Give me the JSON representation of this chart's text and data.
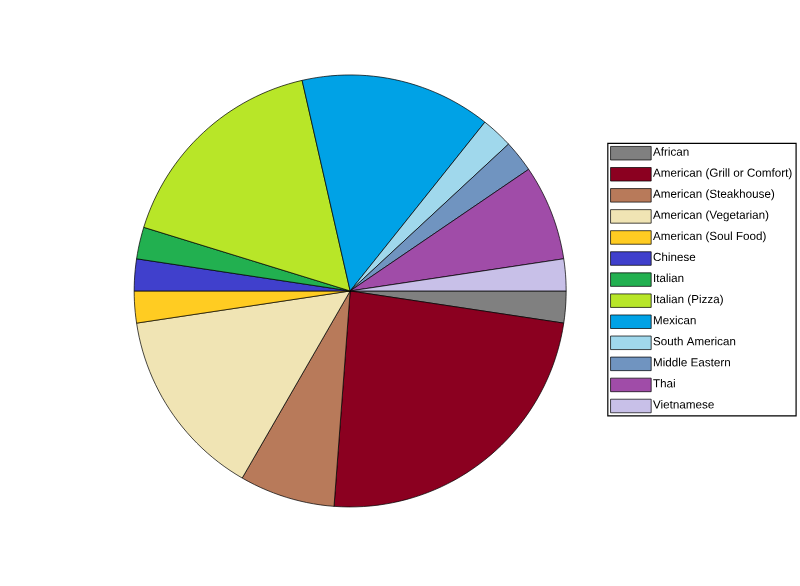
{
  "chart_data": {
    "type": "pie",
    "legend": "right",
    "categories": [
      "African",
      "American (Grill or Comfort)",
      "American (Steakhouse)",
      "American (Vegetarian)",
      "American (Soul Food)",
      "Chinese",
      "Italian",
      "Italian (Pizza)",
      "Mexican",
      "South American",
      "Middle Eastern",
      "Thai",
      "Vietnamese"
    ],
    "values": [
      2.38,
      23.81,
      7.14,
      14.29,
      2.38,
      2.38,
      2.38,
      16.67,
      14.29,
      2.38,
      2.38,
      7.14,
      2.38
    ],
    "colors": [
      "#808080",
      "#8b0020",
      "#b87a5a",
      "#f0e4b4",
      "#ffcc22",
      "#4040cc",
      "#22b050",
      "#b8e628",
      "#00a2e6",
      "#a0d8ec",
      "#7094c0",
      "#a04ca8",
      "#c8c0e8"
    ]
  }
}
